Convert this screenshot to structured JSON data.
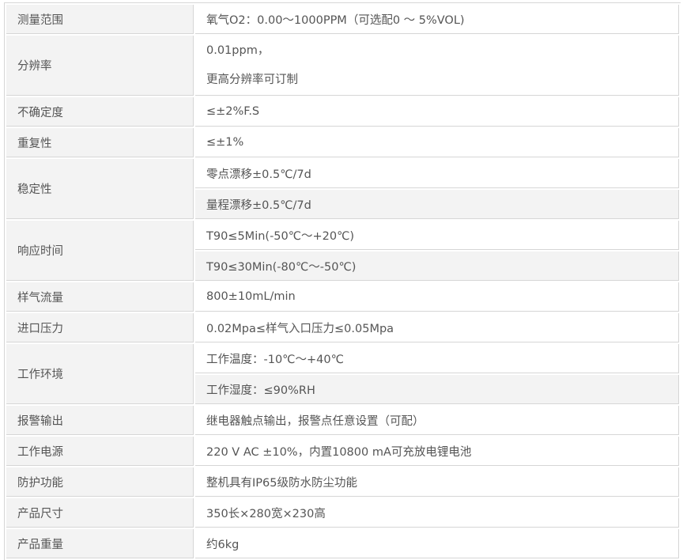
{
  "rows": [
    {
      "label": "测量范围",
      "values": [
        "氧气O2：0.00～1000PPM（可选配0 ～ 5%VOL)"
      ]
    },
    {
      "label": "分辨率",
      "values": [
        "0.01ppm，",
        "更高分辨率可订制"
      ],
      "single_cell": true
    },
    {
      "label": "不确定度",
      "values": [
        "≤±2%F.S"
      ]
    },
    {
      "label": "重复性",
      "values": [
        "≤±1%"
      ]
    },
    {
      "label": "稳定性",
      "values": [
        "零点漂移±0.5℃/7d",
        "量程漂移±0.5℃/7d"
      ]
    },
    {
      "label": "响应时间",
      "values": [
        "T90≤5Min(-50℃～+20℃)",
        "T90≤30Min(-80℃～-50℃)"
      ]
    },
    {
      "label": "样气流量",
      "values": [
        "800±10mL/min"
      ]
    },
    {
      "label": "进口压力",
      "values": [
        "0.02Mpa≤样气入口压力≤0.05Mpa"
      ]
    },
    {
      "label": "工作环境",
      "values": [
        "工作温度：-10℃～+40℃",
        "工作湿度：≤90%RH"
      ]
    },
    {
      "label": "报警输出",
      "values": [
        "继电器触点输出，报警点任意设置（可配）"
      ]
    },
    {
      "label": "工作电源",
      "values": [
        "220 V AC ±10%，内置10800 mA可充放电锂电池"
      ]
    },
    {
      "label": "防护功能",
      "values": [
        "整机具有IP65级防水防尘功能"
      ]
    },
    {
      "label": "产品尺寸",
      "values": [
        "350长×280宽×230高"
      ]
    },
    {
      "label": "产品重量",
      "values": [
        "约6kg"
      ]
    }
  ]
}
